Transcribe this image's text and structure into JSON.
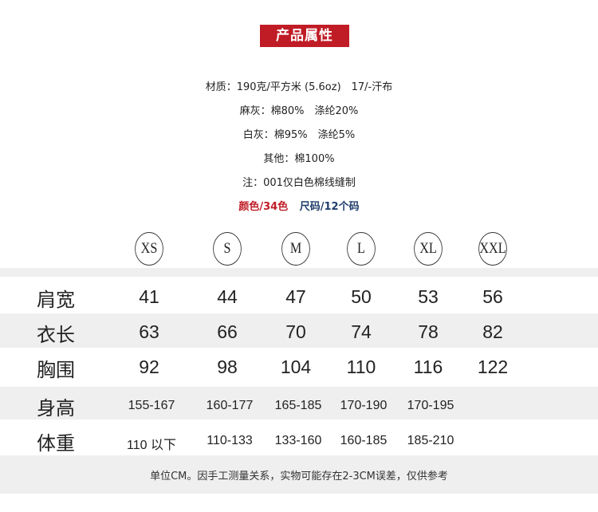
{
  "title": "产品属性",
  "specs": [
    "材质：190克/平方米 (5.6oz)　17/-汗布",
    "麻灰：棉80%　涤纶20%",
    "白灰：棉95%　涤纶5%",
    "其他：棉100%",
    "注：001仅白色棉线缝制"
  ],
  "colors_label": "颜色/34色",
  "sizes_count_label": "尺码/12个码",
  "accent_colors": {
    "red": "#c01c26",
    "navy": "#1f3d6b"
  },
  "sizes": [
    "XS",
    "S",
    "M",
    "L",
    "XL",
    "XXL"
  ],
  "rows": [
    {
      "label": "肩宽",
      "values": [
        "41",
        "44",
        "47",
        "50",
        "53",
        "56"
      ]
    },
    {
      "label": "衣长",
      "values": [
        "63",
        "66",
        "70",
        "74",
        "78",
        "82"
      ]
    },
    {
      "label": "胸围",
      "values": [
        "92",
        "98",
        "104",
        "110",
        "116",
        "122"
      ]
    },
    {
      "label": "身高",
      "values": [
        "155-167",
        "160-177",
        "165-185",
        "170-190",
        "170-195"
      ]
    },
    {
      "label": "体重",
      "values": [
        "110 以下",
        "110-133",
        "133-160",
        "160-185",
        "185-210"
      ]
    }
  ],
  "note": "单位CM。因手工测量关系，实物可能存在2-3CM误差，仅供参考"
}
